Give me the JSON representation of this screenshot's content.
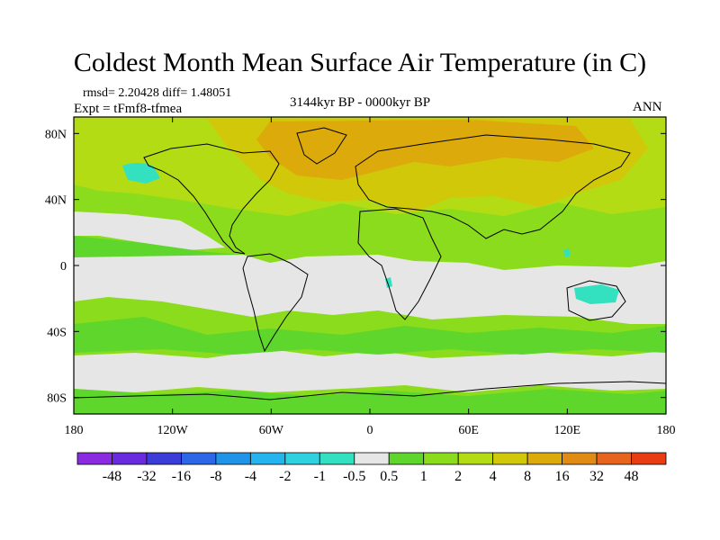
{
  "title": "Coldest Month Mean Surface Air Temperature (in C)",
  "stats_line": "rmsd= 2.20428 diff= 1.48051",
  "experiment_line": "Expt = tFmf8-tfmea",
  "period": "3144kyr BP - 0000kyr BP",
  "season": "ANN",
  "axes": {
    "lon_range": [
      -180,
      180
    ],
    "lat_range": [
      -90,
      90
    ],
    "y_ticks": [
      {
        "lat": 80,
        "label": "80N"
      },
      {
        "lat": 40,
        "label": "40N"
      },
      {
        "lat": 0,
        "label": "0"
      },
      {
        "lat": -40,
        "label": "40S"
      },
      {
        "lat": -80,
        "label": "80S"
      }
    ],
    "x_ticks": [
      {
        "lon": -180,
        "label": "180"
      },
      {
        "lon": -120,
        "label": "120W"
      },
      {
        "lon": -60,
        "label": "60W"
      },
      {
        "lon": 0,
        "label": "0"
      },
      {
        "lon": 60,
        "label": "60E"
      },
      {
        "lon": 120,
        "label": "120E"
      },
      {
        "lon": 180,
        "label": "180"
      }
    ]
  },
  "colorbar": {
    "colors": [
      "#8a2be2",
      "#6a2be0",
      "#3c3cd8",
      "#2d66e6",
      "#1f94e8",
      "#26b4ee",
      "#2fd0e0",
      "#33e0c0",
      "#e6e6e6",
      "#5ed62c",
      "#8cdc1e",
      "#b4dc14",
      "#d2c80a",
      "#dcaa0a",
      "#e08c14",
      "#e6641e",
      "#e83c14"
    ],
    "labels": [
      "-48",
      "-32",
      "-16",
      "-8",
      "-4",
      "-2",
      "-1",
      "-0.5",
      "0.5",
      "1",
      "2",
      "4",
      "8",
      "16",
      "32",
      "48"
    ]
  },
  "field_colors": {
    "neutral": "#e6e6e6",
    "light_green": "#5ed62c",
    "yellow_green": "#8cdc1e",
    "olive": "#b4dc14",
    "gold": "#d2c80a",
    "orange": "#dcaa0a",
    "cyan": "#33e0c0",
    "sky": "#26b4ee"
  }
}
